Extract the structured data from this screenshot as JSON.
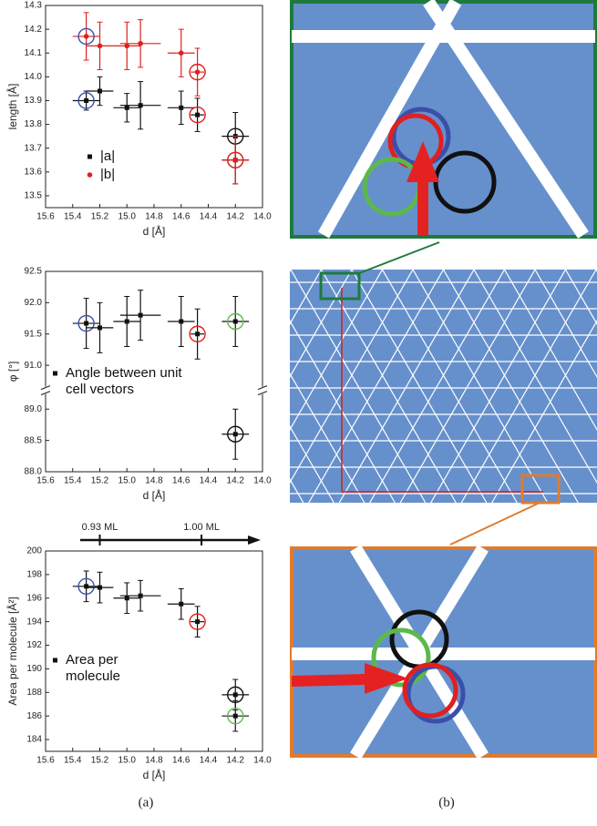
{
  "chart_data": [
    {
      "type": "scatter",
      "xlabel": "d [Å]",
      "ylabel": "length [Å]",
      "xlim": [
        15.6,
        14.0
      ],
      "xticks": [
        15.6,
        15.4,
        15.2,
        {
          "value": 15,
          "label": "15.0"
        },
        14.8,
        14.6,
        14.4,
        14.2,
        {
          "value": 14,
          "label": "14.0"
        }
      ],
      "ylim": [
        13.45,
        14.3
      ],
      "yticks": [
        13.5,
        13.6,
        13.7,
        13.8,
        13.9,
        {
          "value": 14,
          "label": "14.0"
        },
        14.1,
        14.2,
        14.3
      ],
      "series": [
        {
          "name": "|a|",
          "color": "#111111",
          "marker": "square",
          "x": [
            15.3,
            15.2,
            15.0,
            14.9,
            14.6,
            14.48,
            14.2,
            14.2
          ],
          "values": [
            13.9,
            13.94,
            13.87,
            13.88,
            13.87,
            13.84,
            13.75,
            13.65
          ],
          "yerr": [
            0.04,
            0.06,
            0.06,
            0.1,
            0.07,
            0.07,
            0.1,
            0.1
          ],
          "xerr": [
            0.1,
            0.1,
            0.1,
            0.15,
            0.1,
            0.05,
            0.1,
            0.1
          ],
          "circles": [
            "#3a4fa8",
            null,
            null,
            null,
            null,
            "#e02020",
            "#111111",
            "#5cb84a"
          ]
        },
        {
          "name": "|b|",
          "color": "#e02020",
          "marker": "circle",
          "x": [
            15.3,
            15.2,
            15.0,
            14.9,
            14.6,
            14.48,
            14.2
          ],
          "values": [
            14.17,
            14.13,
            14.13,
            14.14,
            14.1,
            14.02,
            13.65
          ],
          "yerr": [
            0.1,
            0.1,
            0.1,
            0.1,
            0.1,
            0.1,
            0.1
          ],
          "xerr": [
            0.1,
            0.1,
            0.1,
            0.15,
            0.1,
            0.05,
            0.1
          ],
          "circles": [
            "#3a4fa8",
            null,
            null,
            null,
            null,
            "#e02020",
            "#e02020"
          ]
        }
      ]
    },
    {
      "type": "scatter",
      "xlabel": "d [Å]",
      "ylabel": "φ [°]",
      "xlim": [
        15.6,
        14.0
      ],
      "xticks": [
        15.6,
        15.4,
        15.2,
        {
          "value": 15,
          "label": "15.0"
        },
        14.8,
        14.6,
        14.4,
        14.2,
        {
          "value": 14,
          "label": "14.0"
        }
      ],
      "ylim": [
        88.0,
        92.5
      ],
      "ybreak": [
        89.3,
        90.6
      ],
      "yticks": [
        {
          "value": 88,
          "label": "88.0"
        },
        88.5,
        {
          "value": 89,
          "label": "89.0"
        },
        {
          "value": 91,
          "label": "91.0"
        },
        91.5,
        {
          "value": 92,
          "label": "92.0"
        },
        92.5
      ],
      "series": [
        {
          "name": "Angle between unit cell vectors",
          "color": "#111111",
          "marker": "square",
          "x": [
            15.3,
            15.2,
            15.0,
            14.9,
            14.6,
            14.48,
            14.2,
            14.2
          ],
          "values": [
            91.67,
            91.6,
            91.7,
            91.8,
            91.7,
            91.5,
            91.7,
            88.6
          ],
          "yerr": [
            0.4,
            0.4,
            0.4,
            0.4,
            0.4,
            0.4,
            0.4,
            0.4
          ],
          "xerr": [
            0.1,
            0.1,
            0.1,
            0.15,
            0.1,
            0.05,
            0.1,
            0.1
          ],
          "circles": [
            "#3a4fa8",
            null,
            null,
            null,
            null,
            "#e02020",
            "#5cb84a",
            "#111111"
          ]
        }
      ]
    },
    {
      "type": "scatter",
      "xlabel": "d [Å]",
      "ylabel": "Area per molecule [Å²]",
      "xlim": [
        15.6,
        14.0
      ],
      "xticks": [
        15.6,
        15.4,
        15.2,
        {
          "value": 15,
          "label": "15.0"
        },
        14.8,
        14.6,
        14.4,
        14.2,
        {
          "value": 14,
          "label": "14.0"
        }
      ],
      "ylim": [
        183,
        200
      ],
      "yticks": [
        184,
        186,
        188,
        190,
        192,
        194,
        196,
        198,
        200
      ],
      "coverage_axis": [
        {
          "value": 15.2,
          "label": "0.93 ML"
        },
        {
          "value": 14.45,
          "label": "1.00 ML"
        }
      ],
      "series": [
        {
          "name": "Area per molecule",
          "color": "#111111",
          "marker": "square",
          "x": [
            15.3,
            15.2,
            15.0,
            14.9,
            14.6,
            14.48,
            14.2,
            14.2
          ],
          "values": [
            197.0,
            196.9,
            196.0,
            196.2,
            195.5,
            194.0,
            187.8,
            186.0
          ],
          "yerr": [
            1.3,
            1.3,
            1.3,
            1.3,
            1.3,
            1.3,
            1.3,
            1.3
          ],
          "xerr": [
            0.1,
            0.1,
            0.1,
            0.15,
            0.1,
            0.05,
            0.1,
            0.1
          ],
          "circles": [
            "#3a4fa8",
            null,
            null,
            null,
            null,
            "#e02020",
            "#111111",
            "#5cb84a"
          ]
        }
      ]
    }
  ],
  "panel_labels": [
    "(a)",
    "(b)"
  ]
}
